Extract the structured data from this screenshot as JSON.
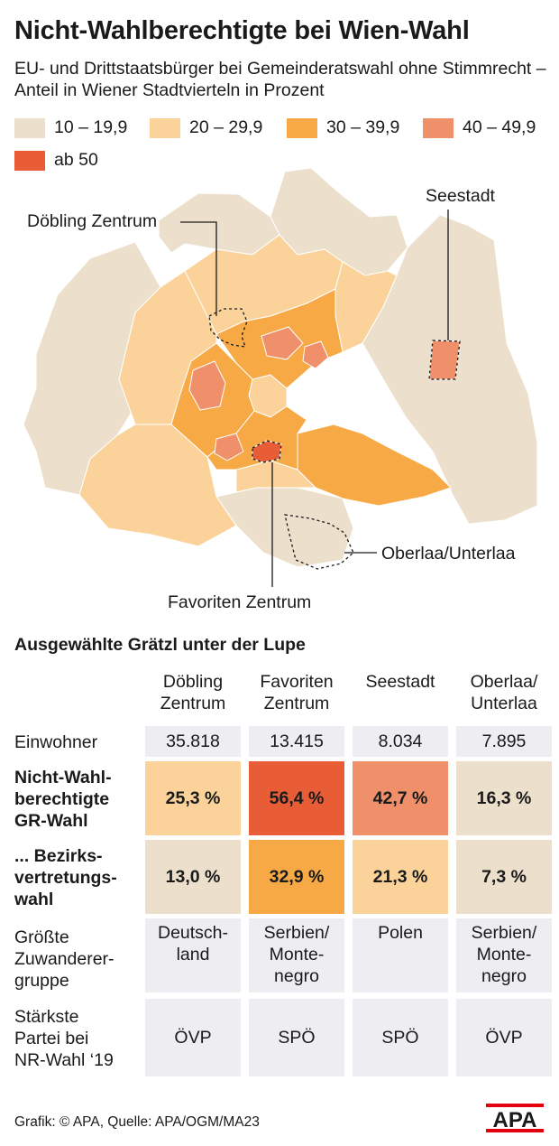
{
  "title": "Nicht-Wahlberechtigte bei Wien-Wahl",
  "subtitle": "EU- und Drittstaatsbürger bei Gemeinderatswahl ohne Stimmrecht – Anteil in Wiener Stadtvierteln in Prozent",
  "legend": [
    {
      "label": "10 – 19,9",
      "color": "#ece0cc"
    },
    {
      "label": "20 – 29,9",
      "color": "#fbd39a"
    },
    {
      "label": "30 – 39,9",
      "color": "#f7a946"
    },
    {
      "label": "40 – 49,9",
      "color": "#f0906a"
    },
    {
      "label": "ab 50",
      "color": "#e85d36"
    }
  ],
  "map_labels": {
    "doebling": "Döbling Zentrum",
    "seestadt": "Seestadt",
    "oberlaa": "Oberlaa/Unterlaa",
    "favoriten": "Favoriten Zentrum"
  },
  "table": {
    "title": "Ausgewählte Grätzl unter der Lupe",
    "columns": [
      "Döbling\nZentrum",
      "Favoriten\nZentrum",
      "Seestadt",
      "Oberlaa/\nUnterlaa"
    ],
    "rows": [
      {
        "label": "Einwohner",
        "bold": false,
        "cells": [
          {
            "text": "35.818",
            "color": "#eeeef2"
          },
          {
            "text": "13.415",
            "color": "#eeeef2"
          },
          {
            "text": "8.034",
            "color": "#eeeef2"
          },
          {
            "text": "7.895",
            "color": "#eeeef2"
          }
        ]
      },
      {
        "label": "Nicht-Wahl-\nberechtigte\nGR-Wahl",
        "bold": true,
        "cells": [
          {
            "text": "25,3 %",
            "color": "#fbd39a"
          },
          {
            "text": "56,4 %",
            "color": "#e85d36"
          },
          {
            "text": "42,7 %",
            "color": "#f0906a"
          },
          {
            "text": "16,3 %",
            "color": "#ece0cc"
          }
        ]
      },
      {
        "label": "... Bezirks-\nvertretungs-\nwahl",
        "bold": true,
        "cells": [
          {
            "text": "13,0 %",
            "color": "#ece0cc"
          },
          {
            "text": "32,9 %",
            "color": "#f7a946"
          },
          {
            "text": "21,3 %",
            "color": "#fbd39a"
          },
          {
            "text": "7,3 %",
            "color": "#ece0cc"
          }
        ]
      },
      {
        "label": "Größte\nZuwanderer-\ngruppe",
        "bold": false,
        "cells": [
          {
            "text": "Deutsch-\nland",
            "color": "#eeeef2"
          },
          {
            "text": "Serbien/\nMonte-\nnegro",
            "color": "#eeeef2"
          },
          {
            "text": "Polen",
            "color": "#eeeef2"
          },
          {
            "text": "Serbien/\nMonte-\nnegro",
            "color": "#eeeef2"
          }
        ]
      },
      {
        "label": "Stärkste\nPartei bei\nNR-Wahl ‘19",
        "bold": false,
        "cells": [
          {
            "text": "ÖVP",
            "color": "#eeeef2"
          },
          {
            "text": "SPÖ",
            "color": "#eeeef2"
          },
          {
            "text": "SPÖ",
            "color": "#eeeef2"
          },
          {
            "text": "ÖVP",
            "color": "#eeeef2"
          }
        ]
      }
    ]
  },
  "footer": "Grafik: © APA, Quelle: APA/OGM/MA23",
  "logo_text": "APA"
}
